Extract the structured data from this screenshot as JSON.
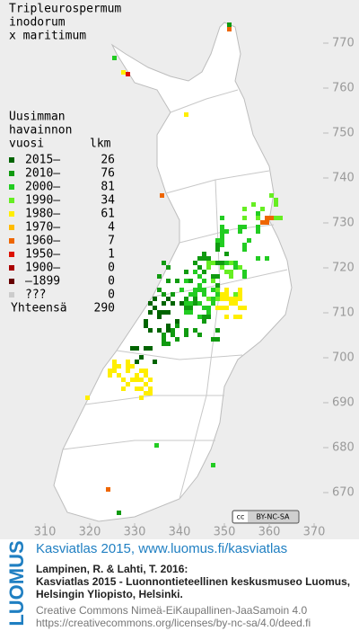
{
  "title_lines": [
    "Tripleurospermum",
    "inodorum",
    "x maritimum"
  ],
  "legend": {
    "header": [
      "Uusimman",
      "havainnon"
    ],
    "col_year": "vuosi",
    "col_count": "lkm",
    "entries": [
      {
        "label": "2015–",
        "count": 26,
        "color": "#006400"
      },
      {
        "label": "2010–",
        "count": 76,
        "color": "#109a10"
      },
      {
        "label": "2000–",
        "count": 81,
        "color": "#22cc22"
      },
      {
        "label": "1990–",
        "count": 34,
        "color": "#66ee22"
      },
      {
        "label": "1980–",
        "count": 61,
        "color": "#ffee00"
      },
      {
        "label": "1970–",
        "count": 4,
        "color": "#ffbb00"
      },
      {
        "label": "1960–",
        "count": 7,
        "color": "#ee6600"
      },
      {
        "label": "1950–",
        "count": 1,
        "color": "#dd1100"
      },
      {
        "label": "1900–",
        "count": 0,
        "color": "#aa0000"
      },
      {
        "label": "–1899",
        "count": 0,
        "color": "#660000"
      },
      {
        "label": "???",
        "count": 0,
        "color": "#cccccc"
      }
    ],
    "total": {
      "label": "Yhteensä",
      "value": 290
    }
  },
  "axes": {
    "xticks": [
      310,
      320,
      330,
      340,
      350,
      360,
      370
    ],
    "xlim": [
      300,
      380
    ],
    "yticks": [
      670,
      680,
      690,
      700,
      710,
      720,
      730,
      740,
      750,
      760,
      770
    ],
    "ylim": [
      660,
      780
    ]
  },
  "footer": {
    "brand": "LUOMUS",
    "link": "Kasviatlas 2015, www.luomus.fi/kasviatlas",
    "citation": [
      "Lampinen, R. & Lahti, T. 2016:",
      "Kasviatlas 2015 - Luonnontieteellinen keskusmuseo Luomus,",
      "Helsingin Yliopisto, Helsinki."
    ],
    "license": [
      "Creative Commons Nimeä-EiKaupallinen-JaaSamoin 4.0",
      "https://creativecommons.org/licenses/by-nc-sa/4.0/deed.fi"
    ],
    "badge": "BY-NC-SA"
  }
}
